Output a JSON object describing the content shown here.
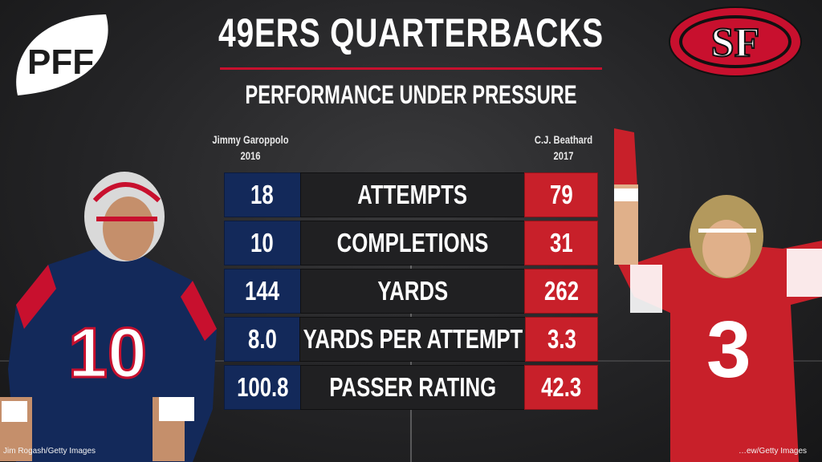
{
  "header": {
    "title": "49ERS QUARTERBACKS",
    "subtitle": "PERFORMANCE UNDER PRESSURE",
    "brand_logo": "PFF",
    "team_logo": "SF"
  },
  "players": {
    "left": {
      "name": "Jimmy Garoppolo",
      "season": "2016",
      "jersey": "10",
      "team_color": "#13295a"
    },
    "right": {
      "name": "C.J. Beathard",
      "season": "2017",
      "jersey": "3",
      "team_color": "#c8202a"
    }
  },
  "stats": [
    {
      "label": "ATTEMPTS",
      "left": "18",
      "right": "79"
    },
    {
      "label": "COMPLETIONS",
      "left": "10",
      "right": "31"
    },
    {
      "label": "YARDS",
      "left": "144",
      "right": "262"
    },
    {
      "label": "YARDS PER ATTEMPT",
      "left": "8.0",
      "right": "3.3"
    },
    {
      "label": "PASSER RATING",
      "left": "100.8",
      "right": "42.3"
    }
  ],
  "credits": {
    "left": "Jim Rogash/Getty Images",
    "right": "…ew/Getty Images"
  },
  "colors": {
    "accent": "#c8102e",
    "navy": "#13295a",
    "red": "#c8202a"
  }
}
